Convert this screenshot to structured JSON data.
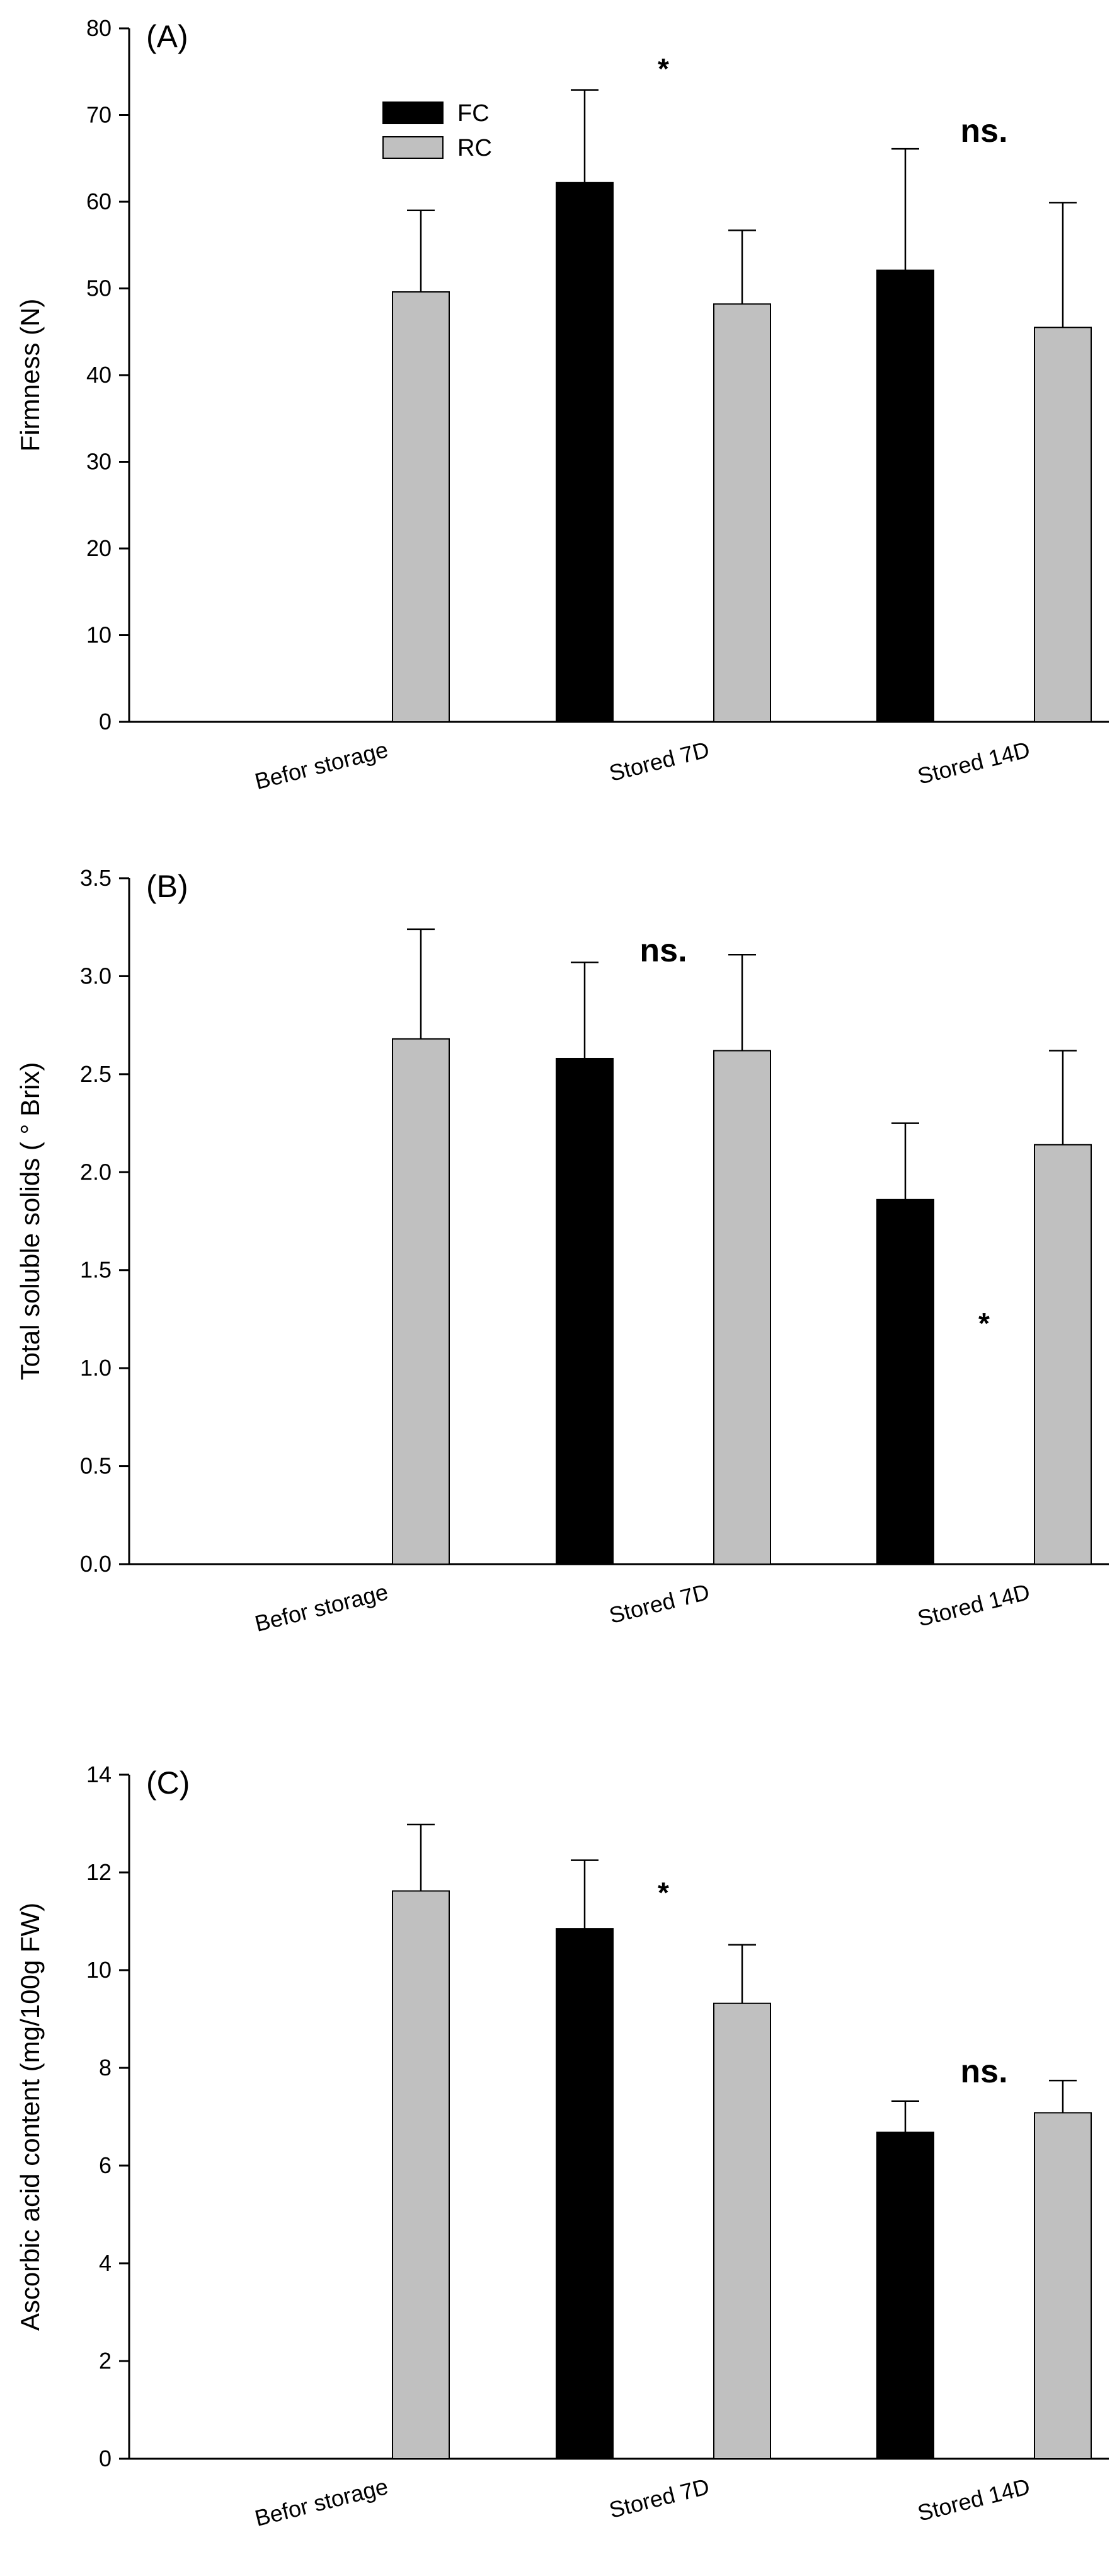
{
  "chart_data": [
    {
      "type": "bar",
      "panel_label": "(A)",
      "title": "",
      "ylabel": "Firmness (N)",
      "xlabel": "",
      "ylim": [
        0,
        80
      ],
      "yticks": [
        "0",
        "10",
        "20",
        "30",
        "40",
        "50",
        "60",
        "70",
        "80"
      ],
      "categories": [
        "Befor storage",
        "Stored 7D",
        "Stored 14D"
      ],
      "series": [
        {
          "name": "FC",
          "color": "#000000",
          "values": [
            null,
            62.2,
            52.1
          ],
          "errors": [
            null,
            10.7,
            14.0
          ]
        },
        {
          "name": "RC",
          "color": "#c0c0c0",
          "values": [
            49.6,
            48.2,
            45.5
          ],
          "errors": [
            9.4,
            8.5,
            14.4
          ]
        }
      ],
      "significance": [
        "",
        "*",
        "ns."
      ],
      "legend": {
        "placement": "top-left",
        "entries": [
          "FC",
          "RC"
        ]
      }
    },
    {
      "type": "bar",
      "panel_label": "(B)",
      "title": "",
      "ylabel": "Total soluble solids ( ° Brix)",
      "xlabel": "",
      "ylim": [
        0,
        3.5
      ],
      "yticks": [
        "0.0",
        "0.5",
        "1.0",
        "1.5",
        "2.0",
        "2.5",
        "3.0",
        "3.5"
      ],
      "categories": [
        "Befor storage",
        "Stored 7D",
        "Stored 14D"
      ],
      "series": [
        {
          "name": "FC",
          "color": "#000000",
          "values": [
            null,
            2.58,
            1.86
          ],
          "errors": [
            null,
            0.49,
            0.39
          ]
        },
        {
          "name": "RC",
          "color": "#c0c0c0",
          "values": [
            2.68,
            2.62,
            2.14
          ],
          "errors": [
            0.56,
            0.49,
            0.48
          ]
        }
      ],
      "significance": [
        "",
        "ns.",
        "*"
      ]
    },
    {
      "type": "bar",
      "panel_label": "(C)",
      "title": "",
      "ylabel": "Ascorbic acid content (mg/100g FW)",
      "xlabel": "",
      "ylim": [
        0,
        14
      ],
      "yticks": [
        "0",
        "2",
        "4",
        "6",
        "8",
        "10",
        "12",
        "14"
      ],
      "categories": [
        "Befor storage",
        "Stored 7D",
        "Stored 14D"
      ],
      "series": [
        {
          "name": "FC",
          "color": "#000000",
          "values": [
            null,
            10.85,
            6.68
          ],
          "errors": [
            null,
            1.4,
            0.64
          ]
        },
        {
          "name": "RC",
          "color": "#c0c0c0",
          "values": [
            11.62,
            9.32,
            7.08
          ],
          "errors": [
            1.36,
            1.2,
            0.66
          ]
        }
      ],
      "significance": [
        "",
        "*",
        "ns."
      ]
    }
  ]
}
